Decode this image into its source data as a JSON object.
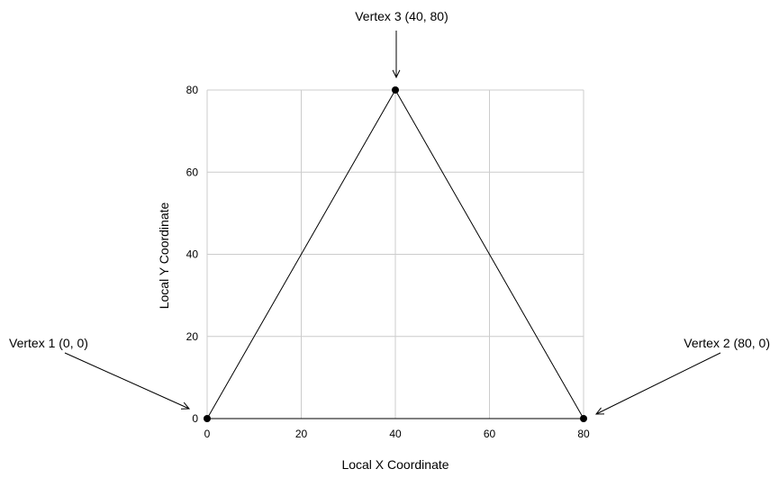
{
  "chart_data": {
    "type": "line",
    "title": "",
    "xlabel": "Local X Coordinate",
    "ylabel": "Local Y Coordinate",
    "xlim": [
      0,
      80
    ],
    "ylim": [
      0,
      80
    ],
    "xticks": [
      0,
      20,
      40,
      60,
      80
    ],
    "yticks": [
      0,
      20,
      40,
      60,
      80
    ],
    "grid": true,
    "legend": "none",
    "series": [
      {
        "x": [
          0,
          40,
          80,
          0
        ],
        "y": [
          0,
          80,
          0,
          0
        ]
      }
    ],
    "annotations": [
      {
        "text": "Vertex 1 (0, 0)",
        "x": 0,
        "y": 0
      },
      {
        "text": "Vertex 2 (80, 0)",
        "x": 80,
        "y": 0
      },
      {
        "text": "Vertex 3 (40, 80)",
        "x": 40,
        "y": 80
      }
    ],
    "colors": {
      "line": "#000000",
      "grid": "#cccccc",
      "marker": "#000000"
    }
  }
}
